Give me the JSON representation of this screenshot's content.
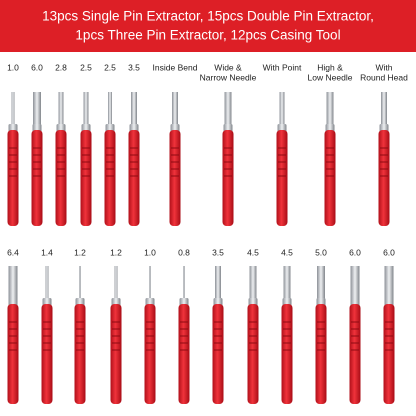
{
  "header": {
    "lines": [
      "13pcs Single Pin Extractor, 15pcs Double Pin Extractor,",
      "1pcs Three Pin Extractor, 12pcs Casing Tool"
    ]
  },
  "rows": [
    {
      "tools": [
        {
          "label": [
            "1.0"
          ]
        },
        {
          "label": [
            "6.0"
          ]
        },
        {
          "label": [
            "2.8"
          ]
        },
        {
          "label": [
            "2.5"
          ]
        },
        {
          "label": [
            "2.5"
          ]
        },
        {
          "label": [
            "3.5"
          ]
        },
        {
          "label": [
            "Inside Bend"
          ]
        },
        {
          "label": [
            "Wide &",
            "Narrow Needle"
          ]
        },
        {
          "label": [
            "With Point"
          ]
        },
        {
          "label": [
            "High &",
            "Low Needle"
          ]
        },
        {
          "label": [
            "With",
            "Round Head"
          ]
        }
      ]
    },
    {
      "tools": [
        {
          "label": [
            "6.4"
          ]
        },
        {
          "label": [
            "1.4"
          ]
        },
        {
          "label": [
            "1.2"
          ]
        },
        {
          "label": [
            "1.2"
          ]
        },
        {
          "label": [
            "1.0"
          ]
        },
        {
          "label": [
            "0.8"
          ]
        },
        {
          "label": [
            "3.5"
          ]
        },
        {
          "label": [
            "4.5"
          ]
        },
        {
          "label": [
            "4.5"
          ]
        },
        {
          "label": [
            "5.0"
          ]
        },
        {
          "label": [
            "6.0"
          ]
        },
        {
          "label": [
            "6.0"
          ]
        }
      ]
    }
  ]
}
